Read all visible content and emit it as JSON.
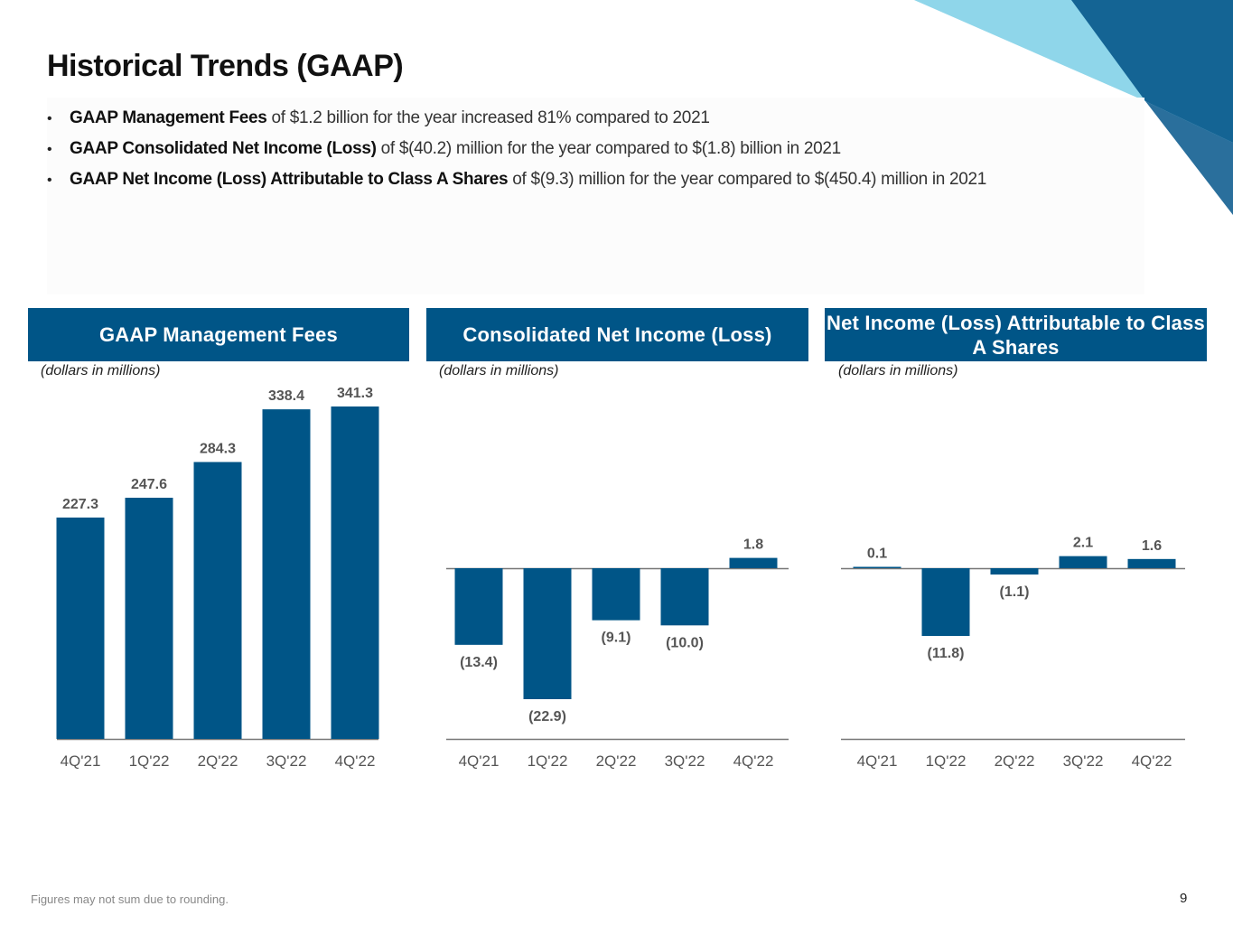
{
  "page": {
    "title": "Historical Trends (GAAP)",
    "bullets": [
      {
        "bold": "GAAP Management Fees",
        "text": " of $1.2 billion for the year increased  81% compared to 2021"
      },
      {
        "bold": "GAAP Consolidated Net Income (Loss)",
        "text": " of $(40.2) million for the year compared to $(1.8) billion in 2021"
      },
      {
        "bold": "GAAP Net Income (Loss) Attributable to Class A Shares",
        "text": " of $(9.3) million  for the year compared to $(450.4) million in 2021"
      }
    ],
    "bullet_glyph": "•",
    "footnote": "Figures may not sum due to rounding.",
    "page_number": "9"
  },
  "colors": {
    "bar": "#005587",
    "header_bg": "#005587",
    "deco_light": "#8fd6ea",
    "deco_dark": "#146494",
    "deco_mid": "#2a6f9c",
    "axis": "#777777",
    "label": "#555555"
  },
  "chart_data": [
    {
      "type": "bar",
      "title": "GAAP Management Fees",
      "units": "(dollars in millions)",
      "categories": [
        "4Q'21",
        "1Q'22",
        "2Q'22",
        "3Q'22",
        "4Q'22"
      ],
      "values": [
        227.3,
        247.6,
        284.3,
        338.4,
        341.3
      ],
      "value_labels": [
        "227.3",
        "247.6",
        "284.3",
        "338.4",
        "341.3"
      ],
      "xlabel": "",
      "ylabel": "",
      "ylim": [
        0,
        341.3
      ],
      "grid": false
    },
    {
      "type": "bar",
      "title": "Consolidated Net Income (Loss)",
      "units": "(dollars in millions)",
      "categories": [
        "4Q'21",
        "1Q'22",
        "2Q'22",
        "3Q'22",
        "4Q'22"
      ],
      "values": [
        -13.4,
        -22.9,
        -9.1,
        -10.0,
        1.8
      ],
      "value_labels": [
        "(13.4)",
        "(22.9)",
        "(9.1)",
        "(10.0)",
        "1.8"
      ],
      "xlabel": "",
      "ylabel": "",
      "ylim": [
        -30,
        30
      ],
      "grid": false
    },
    {
      "type": "bar",
      "title": "Net Income (Loss) Attributable to Class A Shares",
      "units": "(dollars in millions)",
      "categories": [
        "4Q'21",
        "1Q'22",
        "2Q'22",
        "3Q'22",
        "4Q'22"
      ],
      "values": [
        0.1,
        -11.8,
        -1.1,
        2.1,
        1.6
      ],
      "value_labels": [
        "0.1",
        "(11.8)",
        "(1.1)",
        "2.1",
        "1.6"
      ],
      "xlabel": "",
      "ylabel": "",
      "ylim": [
        -30,
        30
      ],
      "grid": false
    }
  ]
}
